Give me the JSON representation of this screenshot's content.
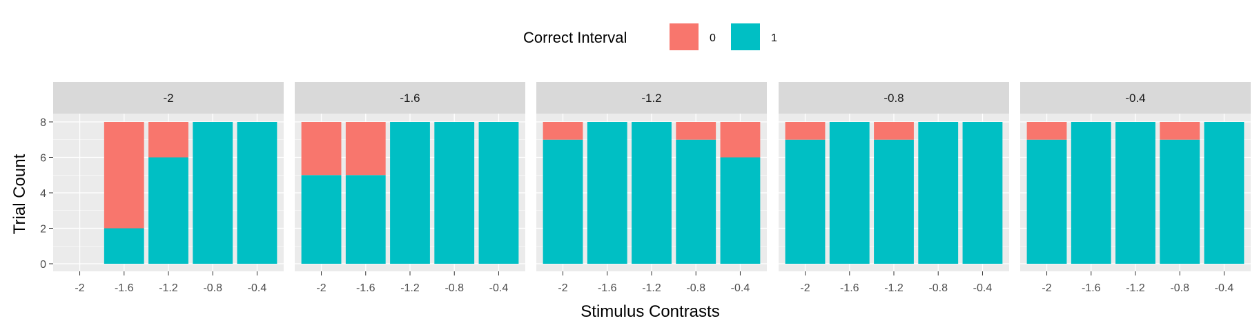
{
  "chart_data": {
    "type": "bar",
    "stacked": true,
    "facet_by": "panel",
    "xlabel": "Stimulus Contrasts",
    "ylabel": "Trial Count",
    "ylim": [
      0,
      8
    ],
    "yticks": [
      0,
      2,
      4,
      6,
      8
    ],
    "categories": [
      "-2",
      "-1.6",
      "-1.2",
      "-0.8",
      "-0.4"
    ],
    "legend": {
      "title": "Correct Interval",
      "position": "top",
      "entries": [
        {
          "label": "0",
          "color": "#F8766D"
        },
        {
          "label": "1",
          "color": "#00BFC4"
        }
      ]
    },
    "colors": {
      "panel_bg": "#EBEBEB",
      "strip_bg": "#D9D9D9",
      "grid": "#FFFFFF"
    },
    "panels": [
      {
        "label": "-2",
        "series": [
          {
            "name": "0",
            "values": [
              0,
              6,
              2,
              0,
              0
            ]
          },
          {
            "name": "1",
            "values": [
              0,
              2,
              6,
              8,
              8
            ]
          }
        ]
      },
      {
        "label": "-1.6",
        "series": [
          {
            "name": "0",
            "values": [
              3,
              3,
              0,
              0,
              0
            ]
          },
          {
            "name": "1",
            "values": [
              5,
              5,
              8,
              8,
              8
            ]
          }
        ]
      },
      {
        "label": "-1.2",
        "series": [
          {
            "name": "0",
            "values": [
              1,
              0,
              0,
              1,
              2
            ]
          },
          {
            "name": "1",
            "values": [
              7,
              8,
              8,
              7,
              6
            ]
          }
        ]
      },
      {
        "label": "-0.8",
        "series": [
          {
            "name": "0",
            "values": [
              1,
              0,
              1,
              0,
              0
            ]
          },
          {
            "name": "1",
            "values": [
              7,
              8,
              7,
              8,
              8
            ]
          }
        ]
      },
      {
        "label": "-0.4",
        "series": [
          {
            "name": "0",
            "values": [
              1,
              0,
              0,
              1,
              0
            ]
          },
          {
            "name": "1",
            "values": [
              7,
              8,
              8,
              7,
              8
            ]
          }
        ]
      }
    ]
  }
}
